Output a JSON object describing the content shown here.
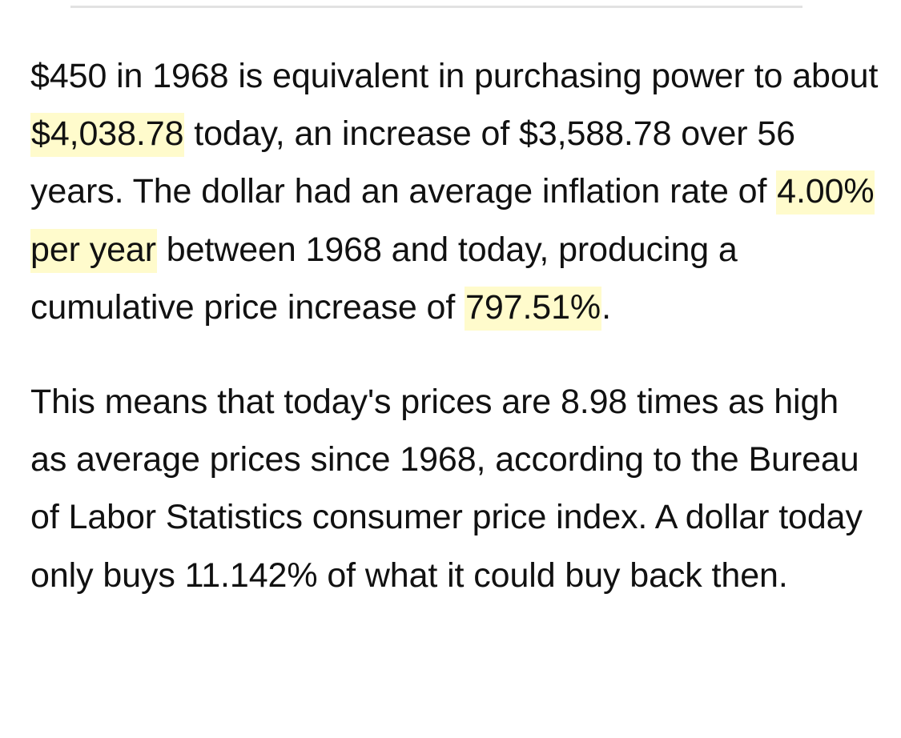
{
  "colors": {
    "highlight": "#fffbcc",
    "text": "#111111",
    "divider": "#e2e2e2"
  },
  "paragraph1": {
    "s1": "$450 in 1968 is equivalent in purchasing power to about ",
    "h1": "$4,038.78",
    "s2": " today, an increase of $3,588.78 over 56 years. The dollar had an average inflation rate of ",
    "h2": "4.00% per year",
    "s3": " between 1968 and today, producing a cumulative price increase of ",
    "h3": "797.51%",
    "s4": "."
  },
  "paragraph2": {
    "text": "This means that today's prices are 8.98 times as high as average prices since 1968, according to the Bureau of Labor Statistics consumer price index. A dollar today only buys 11.142% of what it could buy back then."
  }
}
